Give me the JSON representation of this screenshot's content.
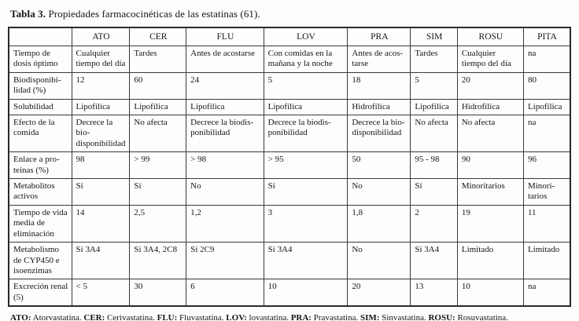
{
  "title": {
    "label": "Tabla 3.",
    "text": " Propiedades farmacocinéticas de las estatinas (61)."
  },
  "table": {
    "columns": [
      "",
      "ATO",
      "CER",
      "FLU",
      "LOV",
      "PRA",
      "SIM",
      "ROSU",
      "PITA"
    ],
    "rows": [
      {
        "label": "Tiempo de dosis óptimo",
        "cells": [
          "Cualquier tiempo del día",
          "Tardes",
          "Antes de acostarse",
          "Con comidas en la mañana y la noche",
          "Antes de acos-tarse",
          "Tardes",
          "Cualquier tiempo del día",
          "na"
        ]
      },
      {
        "label": "Biodisponibi-lidad (%)",
        "cells": [
          "12",
          "60",
          "24",
          "5",
          "18",
          "5",
          "20",
          "80"
        ]
      },
      {
        "label": "Solubilidad",
        "cells": [
          "Lipofílica",
          "Lipofílica",
          "Lipofílica",
          "Lipofílica",
          "Hidrofílica",
          "Lipofílica",
          "Hidrofílica",
          "Lipofílica"
        ]
      },
      {
        "label": "Efecto de la comida",
        "cells": [
          "Decrece la bio-disponibilidad",
          "No afecta",
          "Decrece la biodis-ponibilidad",
          "Decrece la biodis-ponibilidad",
          "Decrece la bio-disponibilidad",
          "No afecta",
          "No afecta",
          "na"
        ]
      },
      {
        "label": "Enlace a pro-teínas (%)",
        "cells": [
          "98",
          "> 99",
          "> 98",
          "> 95",
          "50",
          "95 - 98",
          "90",
          "96"
        ]
      },
      {
        "label": "Metabolitos activos",
        "cells": [
          "Sí",
          "Sí",
          "No",
          "Sí",
          "No",
          "Sí",
          "Minoritarios",
          "Minori-tarios"
        ]
      },
      {
        "label": "Tiempo de vida media de eliminación",
        "cells": [
          "14",
          "2,5",
          "1,2",
          "3",
          "1,8",
          "2",
          "19",
          "11"
        ]
      },
      {
        "label": "Metabolismo de CYP450 e isoenzimas",
        "cells": [
          "Sí 3A4",
          "Sí 3A4, 2C8",
          "Sí 2C9",
          "Sí 3A4",
          "No",
          "Sí 3A4",
          "Limitado",
          "Limitado"
        ]
      },
      {
        "label": "Excreción renal (5)",
        "cells": [
          "< 5",
          "30",
          "6",
          "10",
          "20",
          "13",
          "10",
          "na"
        ]
      }
    ]
  },
  "footnotes": [
    {
      "segments": [
        {
          "abbr": "ATO:",
          "text": " Atorvastatina. "
        },
        {
          "abbr": "CER:",
          "text": " Cerivastatina. "
        },
        {
          "abbr": "FLU:",
          "text": " Fluvastatina. "
        },
        {
          "abbr": "LOV:",
          "text": " lovastatina. "
        },
        {
          "abbr": "PRA:",
          "text": " Pravastatina. "
        },
        {
          "abbr": "SIM:",
          "text": " Sinvastatina. "
        },
        {
          "abbr": "ROSU:",
          "text": " Rosuvastatina."
        }
      ]
    },
    {
      "segments": [
        {
          "abbr": "PITA:",
          "text": " Pitavastatina. "
        },
        {
          "abbr": "na:",
          "text": " no disponibles."
        }
      ]
    }
  ]
}
